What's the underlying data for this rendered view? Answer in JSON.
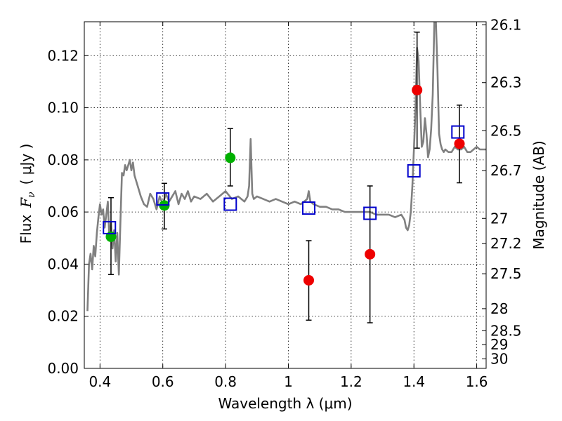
{
  "chart_data": {
    "type": "scatter",
    "xlabel": "Wavelength  λ (μm)",
    "ylabel_prefix": "Flux",
    "ylabel_symbol": "F",
    "ylabel_subscript": "ν",
    "ylabel_unit": "( μJy )",
    "y2label": "Magnitude (AB)",
    "xlim": [
      0.35,
      1.63
    ],
    "ylim": [
      0.0,
      0.133
    ],
    "grid": true,
    "x_ticks": [
      0.4,
      0.6,
      0.8,
      1.0,
      1.2,
      1.4,
      1.6
    ],
    "x_tick_labels": [
      "0.4",
      "0.6",
      "0.8",
      "1",
      "1.2",
      "1.4",
      "1.6"
    ],
    "y_ticks": [
      0.0,
      0.02,
      0.04,
      0.06,
      0.08,
      0.1,
      0.12
    ],
    "y_tick_labels": [
      "0.00",
      "0.02",
      "0.04",
      "0.06",
      "0.08",
      "0.10",
      "0.12"
    ],
    "mag_ticks": [
      26.1,
      26.3,
      26.5,
      26.7,
      27,
      27.2,
      27.5,
      28,
      28.5,
      29,
      30
    ],
    "mag_tick_labels": [
      "26.1",
      "26.3",
      "26.5",
      "26.7",
      "27",
      "27.2",
      "27.5",
      "28",
      "28.5",
      "29",
      "30"
    ],
    "colors": {
      "model": "#808080",
      "green": "#00b000",
      "red": "#ee0000",
      "box": "#0000cc",
      "errorbar": "#000000"
    },
    "series": [
      {
        "kind": "model-spectrum",
        "x": [
          0.36,
          0.365,
          0.37,
          0.375,
          0.38,
          0.385,
          0.39,
          0.395,
          0.4,
          0.405,
          0.41,
          0.415,
          0.42,
          0.425,
          0.43,
          0.435,
          0.44,
          0.445,
          0.45,
          0.455,
          0.46,
          0.465,
          0.47,
          0.475,
          0.48,
          0.485,
          0.49,
          0.495,
          0.5,
          0.505,
          0.51,
          0.52,
          0.53,
          0.54,
          0.55,
          0.56,
          0.57,
          0.58,
          0.59,
          0.6,
          0.61,
          0.62,
          0.63,
          0.64,
          0.65,
          0.66,
          0.67,
          0.68,
          0.69,
          0.7,
          0.72,
          0.74,
          0.76,
          0.78,
          0.8,
          0.82,
          0.84,
          0.86,
          0.87,
          0.875,
          0.88,
          0.885,
          0.89,
          0.9,
          0.92,
          0.94,
          0.96,
          0.98,
          1.0,
          1.02,
          1.04,
          1.06,
          1.065,
          1.07,
          1.08,
          1.1,
          1.12,
          1.14,
          1.16,
          1.18,
          1.2,
          1.22,
          1.24,
          1.26,
          1.28,
          1.3,
          1.32,
          1.34,
          1.36,
          1.37,
          1.375,
          1.38,
          1.385,
          1.39,
          1.395,
          1.4,
          1.405,
          1.41,
          1.415,
          1.42,
          1.425,
          1.43,
          1.435,
          1.44,
          1.445,
          1.45,
          1.455,
          1.46,
          1.465,
          1.47,
          1.475,
          1.48,
          1.485,
          1.49,
          1.495,
          1.5,
          1.51,
          1.52,
          1.53,
          1.54,
          1.55,
          1.56,
          1.57,
          1.58,
          1.59,
          1.6,
          1.61,
          1.62,
          1.63
        ],
        "y": [
          0.022,
          0.04,
          0.044,
          0.038,
          0.047,
          0.043,
          0.052,
          0.058,
          0.063,
          0.059,
          0.061,
          0.054,
          0.059,
          0.064,
          0.049,
          0.056,
          0.046,
          0.053,
          0.041,
          0.052,
          0.036,
          0.056,
          0.075,
          0.074,
          0.078,
          0.076,
          0.078,
          0.08,
          0.076,
          0.079,
          0.074,
          0.07,
          0.066,
          0.063,
          0.062,
          0.067,
          0.065,
          0.061,
          0.066,
          0.063,
          0.067,
          0.064,
          0.066,
          0.068,
          0.063,
          0.067,
          0.065,
          0.068,
          0.064,
          0.066,
          0.065,
          0.067,
          0.064,
          0.066,
          0.068,
          0.065,
          0.066,
          0.064,
          0.066,
          0.07,
          0.088,
          0.067,
          0.065,
          0.066,
          0.065,
          0.064,
          0.065,
          0.064,
          0.063,
          0.064,
          0.063,
          0.065,
          0.068,
          0.064,
          0.063,
          0.062,
          0.062,
          0.061,
          0.061,
          0.06,
          0.06,
          0.06,
          0.06,
          0.06,
          0.059,
          0.059,
          0.059,
          0.058,
          0.059,
          0.057,
          0.054,
          0.053,
          0.055,
          0.06,
          0.07,
          0.084,
          0.1,
          0.123,
          0.118,
          0.1,
          0.085,
          0.087,
          0.096,
          0.09,
          0.081,
          0.084,
          0.092,
          0.105,
          0.133,
          0.133,
          0.115,
          0.09,
          0.086,
          0.084,
          0.083,
          0.084,
          0.083,
          0.083,
          0.085,
          0.084,
          0.084,
          0.085,
          0.083,
          0.083,
          0.084,
          0.085,
          0.084,
          0.084,
          0.084
        ]
      },
      {
        "kind": "photometry-green",
        "x": [
          0.435,
          0.605,
          0.815
        ],
        "y": [
          0.0505,
          0.0625,
          0.0808
        ],
        "yerr_low": [
          0.036,
          0.0535,
          0.07
        ],
        "yerr_high": [
          0.0655,
          0.071,
          0.092
        ]
      },
      {
        "kind": "photometry-red",
        "x": [
          1.065,
          1.26,
          1.41,
          1.545
        ],
        "y": [
          0.0338,
          0.0438,
          0.1068,
          0.0862
        ],
        "yerr_low": [
          0.0185,
          0.0175,
          0.0845,
          0.0712
        ],
        "yerr_high": [
          0.049,
          0.07,
          0.129,
          0.101
        ]
      },
      {
        "kind": "model-bandpass-boxes",
        "x": [
          0.43,
          0.6,
          0.815,
          1.065,
          1.26,
          1.4,
          1.54
        ],
        "y": [
          0.054,
          0.065,
          0.063,
          0.0615,
          0.0595,
          0.0758,
          0.0907
        ]
      }
    ]
  }
}
